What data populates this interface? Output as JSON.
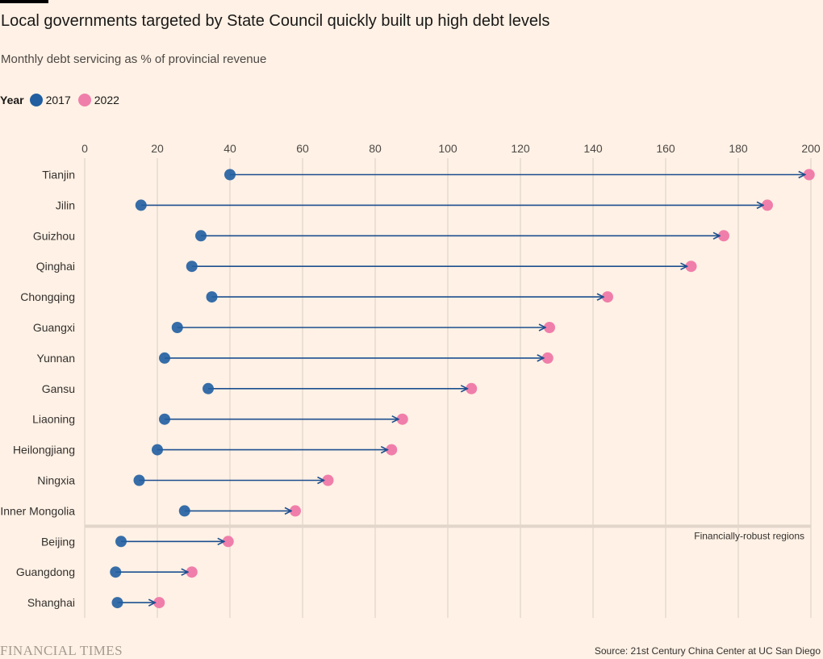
{
  "chart_data": {
    "type": "dumbbell",
    "title": "Local governments targeted by State Council quickly built up high debt levels",
    "subtitle": "Monthly debt servicing as % of provincial revenue",
    "legend": {
      "title": "Year",
      "placement": "top-left",
      "entries": [
        {
          "label": "2017",
          "color": "#205ea1"
        },
        {
          "label": "2022",
          "color": "#f07eaa"
        }
      ]
    },
    "xlim": [
      0,
      200
    ],
    "xticks": [
      "0",
      "20",
      "40",
      "60",
      "80",
      "100",
      "120",
      "140",
      "160",
      "180",
      "200"
    ],
    "grid": true,
    "categories": [
      "Tianjin",
      "Jilin",
      "Guizhou",
      "Qinghai",
      "Chongqing",
      "Guangxi",
      "Yunnan",
      "Gansu",
      "Liaoning",
      "Heilongjiang",
      "Ningxia",
      "Inner Mongolia",
      "Beijing",
      "Guangdong",
      "Shanghai"
    ],
    "series": [
      {
        "name": "2017",
        "color": "#205ea1",
        "values": [
          40,
          15.5,
          32,
          29.5,
          35,
          25.5,
          22,
          34,
          22,
          20,
          15,
          27.5,
          10,
          8.5,
          9
        ]
      },
      {
        "name": "2022",
        "color": "#f07eaa",
        "values": [
          199.5,
          188,
          176,
          167,
          144,
          128,
          127.5,
          106.5,
          87.5,
          84.5,
          67,
          58,
          39.5,
          29.5,
          20.5
        ]
      }
    ],
    "annotation": {
      "text": "Financially-robust regions",
      "after_category_index": 11
    }
  },
  "footer": {
    "brand": "FINANCIAL TIMES",
    "source": "Source: 21st Century China Center at UC San Diego"
  }
}
